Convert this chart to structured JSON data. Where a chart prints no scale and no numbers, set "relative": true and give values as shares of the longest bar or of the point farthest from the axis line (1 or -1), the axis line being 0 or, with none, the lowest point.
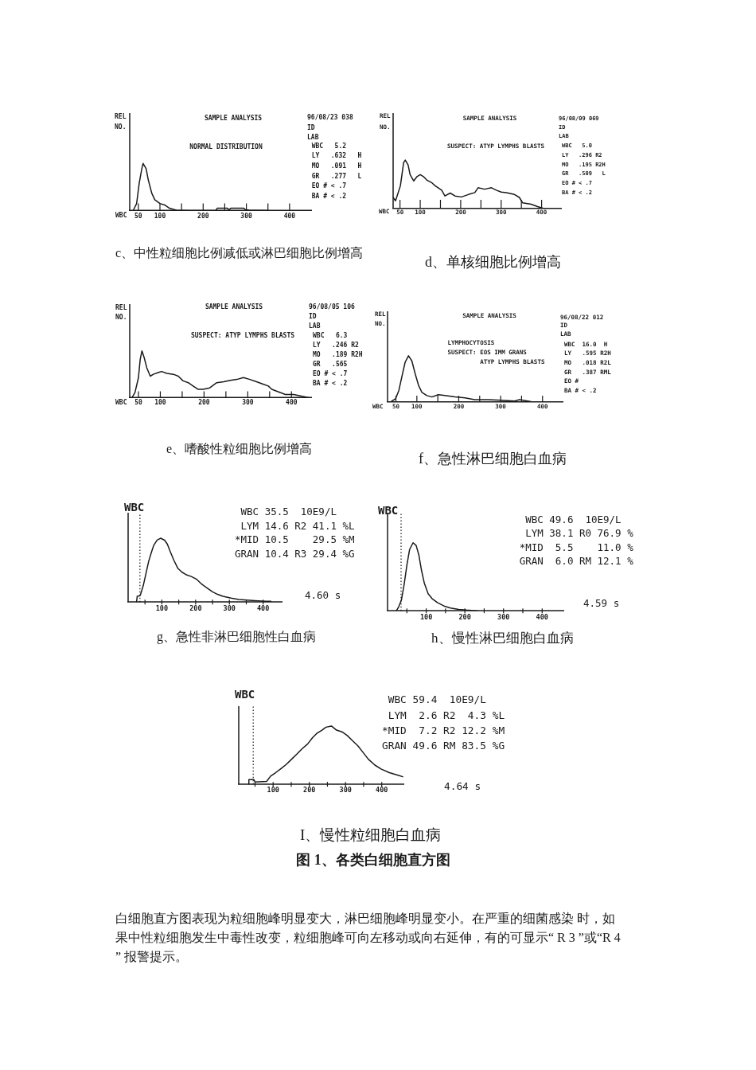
{
  "chart_data": [
    {
      "type": "line",
      "title": "c、中性粒细胞比例减低或淋巴细胞比例增高",
      "ylabel": "REL\nNO.",
      "xlabel": "WBC",
      "relative": true,
      "marker": "none",
      "color": "#1a1a1a",
      "xlim": [
        30,
        450
      ],
      "xticks": [
        50,
        100,
        {
          "value": 150,
          "label": null
        },
        200,
        {
          "value": 250,
          "label": null
        },
        300,
        {
          "value": 350,
          "label": null
        },
        400
      ],
      "x": [
        38,
        46,
        52,
        58,
        61,
        68,
        73,
        81,
        88,
        100,
        111,
        122,
        138,
        168,
        229,
        233,
        256,
        260,
        264,
        294,
        298,
        306,
        351
      ],
      "values": [
        0,
        0.15,
        0.58,
        0.89,
        1,
        0.89,
        0.65,
        0.37,
        0.23,
        0.15,
        0.12,
        0.05,
        0.01,
        0,
        0,
        0.05,
        0.05,
        0.02,
        0.05,
        0.05,
        0.02,
        0.01,
        0
      ],
      "annotations": [
        "SAMPLE ANALYSIS",
        "NORMAL DISTRIBUTION",
        "96/08/23 038\nID\nLAB",
        "WBC   5.2\nLY   .632   H\nMO   .091   H\nGR   .277   L\nEO # < .7\nBA # < .2"
      ]
    },
    {
      "type": "line",
      "title": "d、单核细胞比例增高",
      "ylabel": "REL\nNO.",
      "xlabel": "WBC",
      "relative": true,
      "marker": "none",
      "color": "#1a1a1a",
      "xlim": [
        33,
        448
      ],
      "xticks": [
        50,
        100,
        {
          "value": 150,
          "label": null
        },
        200,
        {
          "value": 250,
          "label": null
        },
        300,
        {
          "value": 350,
          "label": null
        },
        400
      ],
      "x": [
        33,
        39,
        51,
        59,
        63,
        70,
        75,
        84,
        92,
        100,
        108,
        116,
        129,
        137,
        153,
        161,
        174,
        186,
        202,
        219,
        235,
        243,
        259,
        276,
        288,
        300,
        313,
        333,
        345,
        353,
        374,
        390,
        406
      ],
      "values": [
        0.23,
        0.16,
        0.47,
        0.95,
        1,
        0.9,
        0.7,
        0.57,
        0.66,
        0.7,
        0.66,
        0.59,
        0.53,
        0.47,
        0.38,
        0.26,
        0.32,
        0.26,
        0.24,
        0.29,
        0.33,
        0.43,
        0.4,
        0.43,
        0.38,
        0.34,
        0.33,
        0.29,
        0.23,
        0.12,
        0.09,
        0.04,
        0
      ],
      "annotations": [
        "SAMPLE ANALYSIS",
        "SUSPECT: ATYP LYMPHS BLASTS",
        "96/08/09 069\nID\nLAB",
        "WBC   5.0\nLY   .296 R2\nMO   .195 R2H\nGR   .509   L\nEO # < .7\nBA # < .2"
      ]
    },
    {
      "type": "line",
      "title": "e、嗜酸性粒细胞比例增高",
      "ylabel": "REL\nNO.",
      "xlabel": "WBC",
      "relative": true,
      "marker": "none",
      "color": "#1a1a1a",
      "xlim": [
        30,
        445
      ],
      "xticks": [
        50,
        100,
        {
          "value": 150,
          "label": null
        },
        200,
        {
          "value": 250,
          "label": null
        },
        300,
        {
          "value": 350,
          "label": null
        },
        400
      ],
      "x": [
        35,
        42,
        50,
        54,
        58,
        63,
        69,
        77,
        84,
        96,
        103,
        115,
        130,
        141,
        152,
        164,
        175,
        186,
        198,
        213,
        229,
        245,
        260,
        275,
        290,
        305,
        320,
        335,
        347,
        355,
        374,
        386,
        405,
        420,
        439
      ],
      "values": [
        0,
        0.11,
        0.43,
        0.82,
        1,
        0.86,
        0.64,
        0.46,
        0.5,
        0.54,
        0.56,
        0.52,
        0.5,
        0.46,
        0.36,
        0.32,
        0.25,
        0.18,
        0.18,
        0.21,
        0.32,
        0.34,
        0.37,
        0.39,
        0.43,
        0.39,
        0.34,
        0.29,
        0.25,
        0.18,
        0.11,
        0.07,
        0.07,
        0.04,
        0
      ],
      "annotations": [
        "SAMPLE ANALYSIS",
        "SUSPECT: ATYP LYMPHS BLASTS",
        "96/08/05 106\nID\nLAB",
        "WBC   6.3\nLY   .246 R2\nMO   .189 R2H\nGR   .565\nEO # < .7\nBA # < .2"
      ]
    },
    {
      "type": "line",
      "title": "f、急性淋巴细胞白血病",
      "ylabel": "REL\nNO.",
      "xlabel": "WBC",
      "relative": true,
      "marker": "none",
      "color": "#1a1a1a",
      "xlim": [
        30,
        448
      ],
      "xticks": [
        50,
        100,
        {
          "value": 150,
          "label": null
        },
        200,
        {
          "value": 250,
          "label": null
        },
        300,
        {
          "value": 350,
          "label": null
        },
        400
      ],
      "x": [
        37,
        49,
        57,
        64,
        72,
        80,
        88,
        96,
        104,
        112,
        124,
        136,
        151,
        167,
        191,
        215,
        238,
        270,
        302,
        333,
        345,
        373,
        385
      ],
      "values": [
        0,
        0.07,
        0.25,
        0.54,
        0.86,
        1,
        0.89,
        0.61,
        0.36,
        0.21,
        0.14,
        0.11,
        0.16,
        0.14,
        0.11,
        0.09,
        0.05,
        0.05,
        0.04,
        0.02,
        0.05,
        0.01,
        0
      ],
      "annotations": [
        "SAMPLE ANALYSIS",
        "LYMPHOCYTOSIS\nSUSPECT: EOS IMM GRANS\n         ATYP LYMPHS BLASTS",
        "96/08/22 012\nID\nLAB",
        "WBC  16.0  H\nLY   .595 R2H\nMO   .018 R2L\nGR   .387 RML\nEO #\nBA # < .2"
      ]
    },
    {
      "type": "line",
      "title": "g、急性非淋巴细胞性白血病",
      "ylabel": "WBC",
      "relative": true,
      "marker": "none",
      "color": "#1a1a1a",
      "xlim": [
        0,
        455
      ],
      "xticks": [
        {
          "value": 50,
          "label": null
        },
        100,
        {
          "value": 150,
          "label": null
        },
        200,
        {
          "value": 250,
          "label": null
        },
        300,
        {
          "value": 350,
          "label": null
        },
        400
      ],
      "x": [
        25,
        27,
        35,
        37,
        45,
        53,
        61,
        69,
        76,
        86,
        96,
        108,
        116,
        124,
        135,
        147,
        159,
        171,
        187,
        202,
        218,
        234,
        250,
        265,
        281,
        305,
        328,
        352,
        376,
        407,
        423
      ],
      "values": [
        0,
        0.09,
        0.1,
        0.12,
        0.26,
        0.45,
        0.64,
        0.78,
        0.89,
        0.97,
        1,
        0.97,
        0.91,
        0.8,
        0.66,
        0.53,
        0.47,
        0.43,
        0.4,
        0.36,
        0.28,
        0.22,
        0.16,
        0.12,
        0.09,
        0.06,
        0.04,
        0.03,
        0.02,
        0.01,
        0.01
      ],
      "ref_lines": [
        {
          "axis": "x",
          "value": 35,
          "line_style": "dotted"
        }
      ],
      "annotations": [
        " WBC 35.5  10E9/L\n LYM 14.6 R2 41.1 %L\n*MID 10.5    29.5 %M\nGRAN 10.4 R3 29.4 %G",
        "4.60 s"
      ]
    },
    {
      "type": "line",
      "title": "h、慢性淋巴细胞白血病",
      "ylabel": "WBC",
      "relative": true,
      "marker": "none",
      "color": "#1a1a1a",
      "xlim": [
        0,
        455
      ],
      "xticks": [
        {
          "value": 50,
          "label": null
        },
        100,
        {
          "value": 150,
          "label": null
        },
        200,
        {
          "value": 250,
          "label": null
        },
        300,
        {
          "value": 350,
          "label": null
        },
        400
      ],
      "x": [
        23,
        29,
        36,
        43,
        50,
        57,
        66,
        74,
        81,
        88,
        95,
        105,
        115,
        129,
        146,
        163,
        184,
        204,
        232
      ],
      "values": [
        0,
        0.06,
        0.16,
        0.39,
        0.67,
        0.9,
        1,
        0.96,
        0.82,
        0.59,
        0.41,
        0.25,
        0.18,
        0.12,
        0.07,
        0.04,
        0.02,
        0.01,
        0
      ],
      "ref_lines": [
        {
          "axis": "x",
          "value": 35,
          "line_style": "dotted"
        }
      ],
      "annotations": [
        " WBC 49.6  10E9/L\n LYM 38.1 R0 76.9 %\n*MID  5.5    11.0 %\nGRAN  6.0 RM 12.1 %",
        "4.59 s"
      ]
    },
    {
      "type": "line",
      "title": "I、慢性粒细胞白血病",
      "ylabel": "WBC",
      "relative": true,
      "marker": "none",
      "color": "#1a1a1a",
      "xlim": [
        5,
        460
      ],
      "xticks": [
        {
          "value": 50,
          "label": null
        },
        100,
        {
          "value": 150,
          "label": null
        },
        200,
        {
          "value": 250,
          "label": null
        },
        300,
        {
          "value": 350,
          "label": null
        },
        400
      ],
      "x": [
        32,
        33,
        47,
        50,
        82,
        93,
        107,
        122,
        136,
        151,
        166,
        180,
        195,
        209,
        220,
        235,
        246,
        261,
        275,
        290,
        304,
        319,
        334,
        348,
        363,
        381,
        399,
        421,
        443,
        458
      ],
      "values": [
        0,
        0.08,
        0.08,
        0.04,
        0.05,
        0.14,
        0.2,
        0.27,
        0.34,
        0.43,
        0.52,
        0.61,
        0.69,
        0.8,
        0.87,
        0.93,
        0.98,
        1,
        0.93,
        0.9,
        0.84,
        0.75,
        0.66,
        0.55,
        0.43,
        0.33,
        0.26,
        0.2,
        0.16,
        0.13
      ],
      "ref_lines": [
        {
          "axis": "x",
          "value": 45,
          "line_style": "dotted"
        }
      ],
      "annotations": [
        " WBC 59.4  10E9/L\n LYM  2.6 R2  4.3 %L\n*MID  7.2 R2 12.2 %M\nGRAN 49.6 RM 83.5 %G",
        "4.64 s"
      ]
    },
    {
      "type": "other",
      "title": "图 1、各类白细胞直方图",
      "annotations": [
        "白细胞直方图表现为粒细胞峰明显变大，淋巴细胞峰明显变小。在严重的细菌感染 时，如果中性粒细胞发生中毒性改变，粒细胞峰可向左移动或向右延伸，有的可显示“ R 3 ”或“R 4 ” 报警提示。"
      ]
    }
  ]
}
